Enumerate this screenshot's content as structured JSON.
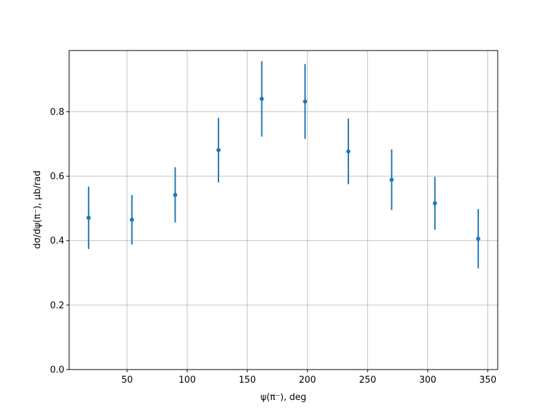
{
  "chart_data": {
    "type": "errorbar",
    "x_label": "ψ(π⁻), deg",
    "y_label": "dσ/dψ(π⁻), μb/rad",
    "x": [
      18,
      54,
      90,
      126,
      162,
      198,
      234,
      270,
      306,
      342
    ],
    "series": [
      {
        "color": "#1f77b4",
        "values": [
          0.471,
          0.465,
          0.542,
          0.681,
          0.84,
          0.832,
          0.677,
          0.589,
          0.516,
          0.406
        ],
        "errors": [
          0.097,
          0.077,
          0.086,
          0.1,
          0.117,
          0.116,
          0.102,
          0.094,
          0.082,
          0.092
        ]
      }
    ],
    "xlim": [
      1.8,
      358.2
    ],
    "xticks": [
      50,
      100,
      150,
      200,
      250,
      300,
      350
    ],
    "ylim": [
      0,
      0.99
    ],
    "yticks": [
      {
        "value": 0,
        "label": "0.0"
      },
      0.2,
      0.4,
      0.6,
      0.8
    ],
    "grid": true
  }
}
